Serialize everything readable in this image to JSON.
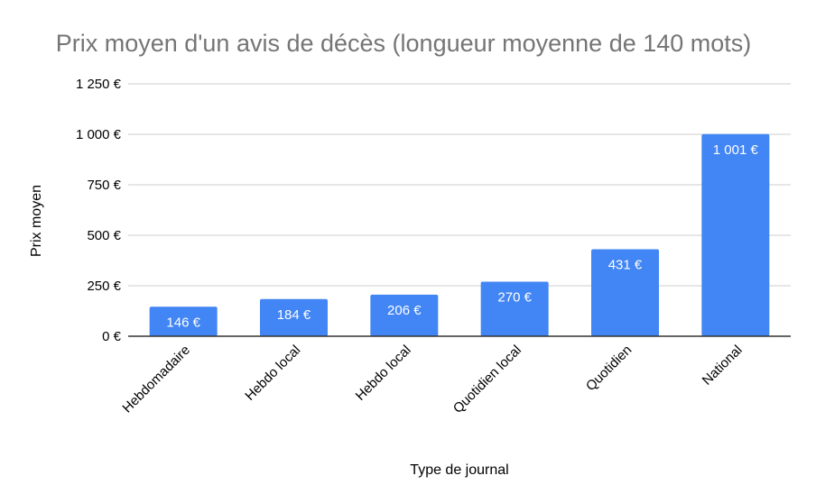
{
  "chart_data": {
    "type": "bar",
    "title": "Prix moyen d'un avis de décès (longueur moyenne de 140 mots)",
    "xlabel": "Type de journal",
    "ylabel": "Prix moyen",
    "categories": [
      "Hebdomadaire",
      "Hebdo local",
      "Hebdo local",
      "Quotidien local",
      "Quotidien",
      "National"
    ],
    "values": [
      146,
      184,
      206,
      270,
      431,
      1001
    ],
    "value_labels": [
      "146 €",
      "184 €",
      "206 €",
      "270 €",
      "431 €",
      "1 001 €"
    ],
    "yticks": [
      0,
      250,
      500,
      750,
      1000,
      1250
    ],
    "ytick_labels": [
      "0 €",
      "250 €",
      "500 €",
      "750 €",
      "1 000 €",
      "1 250 €"
    ],
    "ylim": [
      0,
      1250
    ],
    "grid": true,
    "legend": "none",
    "bar_color": "#4285f4"
  }
}
